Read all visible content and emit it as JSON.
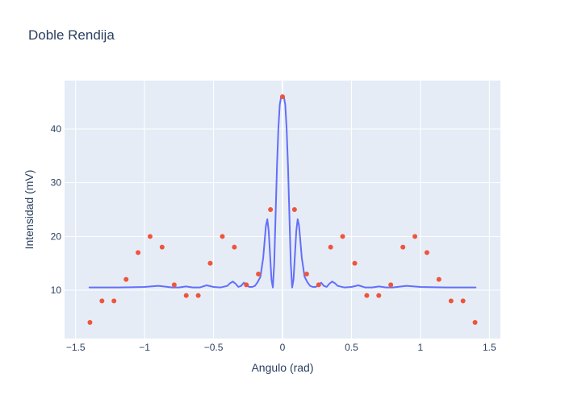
{
  "chart_data": {
    "type": "line",
    "title": "Doble Rendija",
    "xlabel": "Angulo (rad)",
    "ylabel": "Intensidad (mV)",
    "xlim": [
      -1.58,
      1.58
    ],
    "ylim": [
      1,
      49
    ],
    "x_ticks": [
      -1.5,
      -1,
      -0.5,
      0,
      0.5,
      1,
      1.5
    ],
    "x_tick_labels": [
      "−1.5",
      "−1",
      "−0.5",
      "0",
      "0.5",
      "1",
      "1.5"
    ],
    "y_ticks": [
      10,
      20,
      30,
      40
    ],
    "y_tick_labels": [
      "10",
      "20",
      "30",
      "40"
    ],
    "grid": true,
    "legend": "none",
    "background_color": "#e5ecf6",
    "series": [
      {
        "mode": "markers",
        "color": "#ef553b",
        "x": [
          -1.396,
          -1.309,
          -1.222,
          -1.134,
          -1.047,
          -0.96,
          -0.873,
          -0.785,
          -0.698,
          -0.611,
          -0.524,
          -0.436,
          -0.349,
          -0.262,
          -0.175,
          -0.087,
          0,
          0.087,
          0.175,
          0.262,
          0.349,
          0.436,
          0.524,
          0.611,
          0.698,
          0.785,
          0.873,
          0.96,
          1.047,
          1.134,
          1.222,
          1.309,
          1.396
        ],
        "y": [
          4,
          8,
          8,
          12,
          17,
          20,
          18,
          11,
          9,
          9,
          15,
          20,
          18,
          11,
          13,
          25,
          46,
          25,
          13,
          11,
          18,
          20,
          15,
          9,
          9,
          11,
          18,
          20,
          17,
          12,
          8,
          8,
          4
        ]
      },
      {
        "mode": "lines",
        "color": "#636efa",
        "x": [
          -1.4,
          -1.3,
          -1.2,
          -1.1,
          -1.0,
          -0.9,
          -0.8,
          -0.75,
          -0.7,
          -0.65,
          -0.6,
          -0.55,
          -0.5,
          -0.45,
          -0.4,
          -0.38,
          -0.36,
          -0.34,
          -0.32,
          -0.3,
          -0.28,
          -0.26,
          -0.24,
          -0.22,
          -0.2,
          -0.18,
          -0.16,
          -0.14,
          -0.13,
          -0.12,
          -0.11,
          -0.1,
          -0.09,
          -0.08,
          -0.07,
          -0.06,
          -0.05,
          -0.04,
          -0.03,
          -0.02,
          -0.01,
          0,
          0.01,
          0.02,
          0.03,
          0.04,
          0.05,
          0.06,
          0.07,
          0.08,
          0.09,
          0.1,
          0.11,
          0.12,
          0.13,
          0.14,
          0.16,
          0.18,
          0.2,
          0.22,
          0.24,
          0.26,
          0.28,
          0.3,
          0.32,
          0.34,
          0.36,
          0.38,
          0.4,
          0.45,
          0.5,
          0.55,
          0.6,
          0.65,
          0.7,
          0.75,
          0.8,
          0.9,
          1.0,
          1.1,
          1.2,
          1.3,
          1.4
        ],
        "y": [
          10.5,
          10.5,
          10.5,
          10.55,
          10.6,
          10.8,
          10.5,
          10.5,
          10.7,
          10.5,
          10.5,
          10.9,
          10.6,
          10.5,
          10.8,
          11.3,
          11.6,
          11.2,
          10.6,
          10.8,
          11.4,
          10.9,
          10.6,
          10.6,
          10.8,
          11.5,
          12.5,
          16,
          19,
          22,
          23.2,
          21,
          16.5,
          12,
          10.5,
          15,
          24,
          33,
          40,
          44.5,
          46,
          46,
          46,
          44.5,
          40,
          33,
          24,
          15,
          10.5,
          12,
          16.5,
          21,
          23.2,
          22,
          19,
          16,
          12.5,
          11.5,
          10.8,
          10.6,
          10.6,
          10.9,
          11.4,
          10.8,
          10.6,
          11.2,
          11.6,
          11.3,
          10.8,
          10.5,
          10.6,
          10.9,
          10.5,
          10.5,
          10.7,
          10.5,
          10.5,
          10.8,
          10.6,
          10.55,
          10.5,
          10.5,
          10.5
        ]
      }
    ]
  }
}
